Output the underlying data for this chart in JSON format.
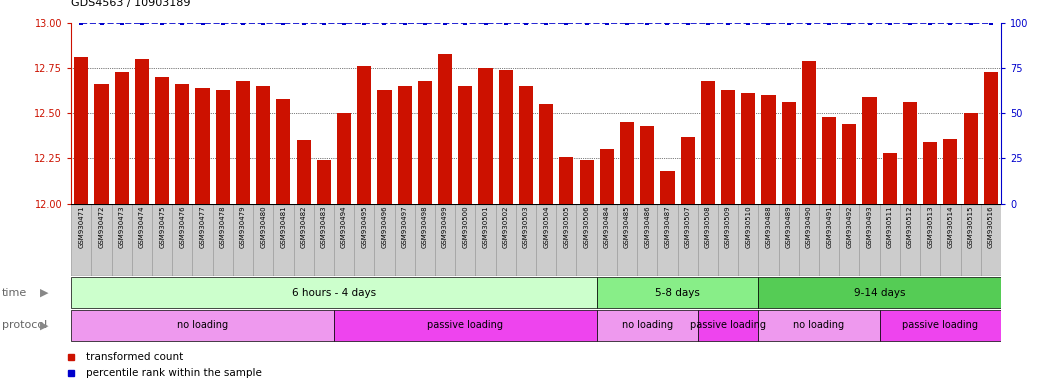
{
  "title": "GDS4563 / 10903189",
  "samples": [
    "GSM930471",
    "GSM930472",
    "GSM930473",
    "GSM930474",
    "GSM930475",
    "GSM930476",
    "GSM930477",
    "GSM930478",
    "GSM930479",
    "GSM930480",
    "GSM930481",
    "GSM930482",
    "GSM930483",
    "GSM930494",
    "GSM930495",
    "GSM930496",
    "GSM930497",
    "GSM930498",
    "GSM930499",
    "GSM930500",
    "GSM930501",
    "GSM930502",
    "GSM930503",
    "GSM930504",
    "GSM930505",
    "GSM930506",
    "GSM930484",
    "GSM930485",
    "GSM930486",
    "GSM930487",
    "GSM930507",
    "GSM930508",
    "GSM930509",
    "GSM930510",
    "GSM930488",
    "GSM930489",
    "GSM930490",
    "GSM930491",
    "GSM930492",
    "GSM930493",
    "GSM930511",
    "GSM930512",
    "GSM930513",
    "GSM930514",
    "GSM930515",
    "GSM930516"
  ],
  "bar_values": [
    12.81,
    12.66,
    12.73,
    12.8,
    12.7,
    12.66,
    12.64,
    12.63,
    12.68,
    12.65,
    12.58,
    12.35,
    12.24,
    12.5,
    12.76,
    12.63,
    12.65,
    12.68,
    12.83,
    12.65,
    12.75,
    12.74,
    12.65,
    12.55,
    12.26,
    12.24,
    12.3,
    12.45,
    12.43,
    12.18,
    12.37,
    12.68,
    12.63,
    12.61,
    12.6,
    12.56,
    12.79,
    12.48,
    12.44,
    12.59,
    12.28,
    12.56,
    12.34,
    12.36,
    12.5,
    12.73
  ],
  "percentile_values": [
    13,
    13,
    13,
    13,
    13,
    13,
    13,
    13,
    13,
    13,
    13,
    13,
    13,
    13,
    13,
    13,
    13,
    13,
    13,
    13,
    13,
    13,
    13,
    13,
    13,
    13,
    13,
    13,
    13,
    13,
    13,
    13,
    13,
    13,
    13,
    13,
    13,
    13,
    13,
    13,
    13,
    13,
    13,
    13,
    13,
    13
  ],
  "bar_color": "#cc1100",
  "percentile_color": "#0000cc",
  "ylim_left": [
    12.0,
    13.0
  ],
  "ylim_right": [
    0,
    100
  ],
  "yticks_left": [
    12.0,
    12.25,
    12.5,
    12.75,
    13.0
  ],
  "yticks_right": [
    0,
    25,
    50,
    75,
    100
  ],
  "dotted_lines": [
    12.25,
    12.5,
    12.75
  ],
  "time_groups": [
    {
      "label": "6 hours - 4 days",
      "start": 0,
      "end": 26,
      "color": "#ccffcc"
    },
    {
      "label": "5-8 days",
      "start": 26,
      "end": 34,
      "color": "#88ee88"
    },
    {
      "label": "9-14 days",
      "start": 34,
      "end": 46,
      "color": "#55cc55"
    }
  ],
  "protocol_groups": [
    {
      "label": "no loading",
      "start": 0,
      "end": 13,
      "color": "#ee99ee"
    },
    {
      "label": "passive loading",
      "start": 13,
      "end": 26,
      "color": "#ee44ee"
    },
    {
      "label": "no loading",
      "start": 26,
      "end": 31,
      "color": "#ee99ee"
    },
    {
      "label": "passive loading",
      "start": 31,
      "end": 34,
      "color": "#ee44ee"
    },
    {
      "label": "no loading",
      "start": 34,
      "end": 40,
      "color": "#ee99ee"
    },
    {
      "label": "passive loading",
      "start": 40,
      "end": 46,
      "color": "#ee44ee"
    }
  ],
  "legend_bar_label": "transformed count",
  "legend_pct_label": "percentile rank within the sample",
  "background_color": "#ffffff",
  "xtick_bg_color": "#cccccc",
  "bar_width": 0.7
}
